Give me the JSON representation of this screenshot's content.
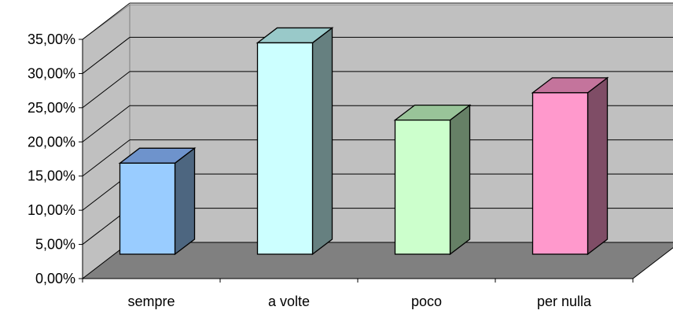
{
  "chart_data": {
    "type": "bar",
    "categories": [
      "sempre",
      "a volte",
      "poco",
      "per nulla"
    ],
    "values": [
      14.7,
      32.3,
      21.0,
      25.0
    ],
    "colors": [
      {
        "front": "#99CCFF",
        "top": "#6E93CC",
        "side": "#4D6680"
      },
      {
        "front": "#CCFFFF",
        "top": "#99C9C9",
        "side": "#668080"
      },
      {
        "front": "#CCFFCC",
        "top": "#99C499",
        "side": "#668066"
      },
      {
        "front": "#FF99CC",
        "top": "#C4749C",
        "side": "#7F4D66"
      }
    ],
    "y_ticks": [
      "0,00%",
      "5,00%",
      "10,00%",
      "15,00%",
      "20,00%",
      "25,00%",
      "30,00%",
      "35,00%"
    ],
    "ylim": [
      0,
      35
    ],
    "grid": true,
    "style": "3d-column",
    "wall_color": "#C0C0C0",
    "floor_color": "#808080"
  }
}
